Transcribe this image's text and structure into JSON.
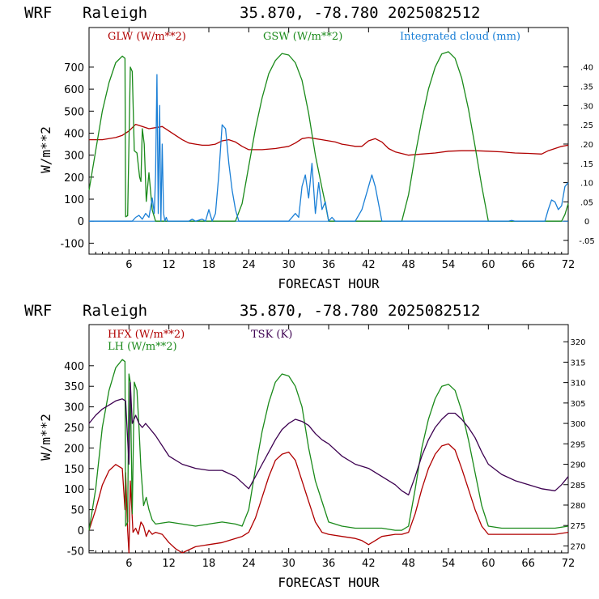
{
  "colors": {
    "red": "#b00000",
    "green": "#1a8a1a",
    "blue": "#1a7fd6",
    "purple": "#3c0050",
    "axis": "#000000"
  },
  "chart_data": [
    {
      "type": "line",
      "header": {
        "model": "WRF",
        "site": "Raleigh",
        "coords": "35.870, -78.780",
        "init": "2025082512"
      },
      "xlabel": "FORECAST HOUR",
      "ylabel": "W/m**2",
      "xlim": [
        0,
        72
      ],
      "ylim": [
        -150,
        880
      ],
      "y2lim": [
        -0.0856,
        0.5023
      ],
      "x_ticks": [
        6,
        12,
        18,
        24,
        30,
        36,
        42,
        48,
        54,
        60,
        66,
        72
      ],
      "y_ticks": [
        -100,
        0,
        100,
        200,
        300,
        400,
        500,
        600,
        700
      ],
      "y2_ticks": [
        ".40",
        ".35",
        ".30",
        ".25",
        ".20",
        ".15",
        ".10",
        ".05",
        "0",
        "-.05"
      ],
      "y2_tick_values": [
        0.4,
        0.35,
        0.3,
        0.25,
        0.2,
        0.15,
        0.1,
        0.05,
        0,
        -0.05
      ],
      "series": [
        {
          "name": "GLW (W/m**2)",
          "color": "red",
          "axis": "left",
          "x": [
            0,
            2,
            4,
            5,
            6,
            7,
            8,
            9,
            10,
            11,
            12,
            13,
            14,
            15,
            16,
            17,
            18,
            19,
            20,
            21,
            22,
            23,
            24,
            26,
            28,
            30,
            31,
            32,
            33,
            34,
            35,
            36,
            37,
            38,
            39,
            40,
            41,
            42,
            43,
            44,
            45,
            46,
            48,
            50,
            52,
            54,
            56,
            58,
            60,
            62,
            64,
            66,
            68,
            69,
            70,
            71,
            72
          ],
          "y": [
            370,
            370,
            380,
            390,
            410,
            440,
            430,
            420,
            425,
            430,
            410,
            390,
            370,
            355,
            350,
            345,
            345,
            350,
            365,
            370,
            360,
            340,
            325,
            325,
            330,
            340,
            355,
            375,
            380,
            375,
            370,
            365,
            360,
            350,
            345,
            340,
            340,
            365,
            375,
            360,
            330,
            315,
            300,
            305,
            310,
            318,
            320,
            320,
            318,
            315,
            310,
            308,
            305,
            320,
            330,
            340,
            345
          ]
        },
        {
          "name": "GSW (W/m**2)",
          "color": "green",
          "axis": "left",
          "x": [
            0,
            1,
            2,
            3,
            4,
            5,
            5.4,
            5.5,
            5.8,
            6.2,
            6.5,
            6.8,
            7.2,
            7.6,
            7.8,
            8,
            8.3,
            8.6,
            9,
            9.5,
            10,
            22,
            23,
            24,
            25,
            26,
            27,
            28,
            29,
            30,
            31,
            32,
            33,
            34,
            35,
            35.5,
            36,
            47,
            48,
            49,
            50,
            51,
            52,
            53,
            54,
            55,
            56,
            57,
            58,
            59,
            60,
            71,
            71.5,
            72
          ],
          "y": [
            140,
            320,
            500,
            630,
            720,
            750,
            740,
            20,
            25,
            700,
            680,
            320,
            310,
            200,
            180,
            420,
            350,
            90,
            220,
            50,
            0,
            0,
            80,
            250,
            420,
            560,
            670,
            730,
            762,
            755,
            720,
            640,
            490,
            300,
            150,
            80,
            0,
            0,
            120,
            300,
            460,
            600,
            700,
            760,
            770,
            740,
            650,
            510,
            340,
            160,
            0,
            0,
            30,
            80
          ]
        },
        {
          "name": "Integrated cloud (mm)",
          "color": "blue",
          "axis": "right",
          "x": [
            0,
            6.5,
            7,
            7.5,
            8,
            8.5,
            9,
            9.5,
            9.8,
            10,
            10.2,
            10.4,
            10.6,
            10.8,
            11,
            11.2,
            11.4,
            11.6,
            11.8,
            12,
            15,
            15.5,
            16,
            17,
            17.5,
            18,
            18.5,
            19,
            19.5,
            20,
            20.5,
            21,
            21.5,
            22,
            22.5,
            23,
            30,
            31,
            31.5,
            32,
            32.5,
            33,
            33.5,
            34,
            34.5,
            35,
            35.5,
            36,
            36.5,
            37,
            40,
            41,
            42,
            42.5,
            43,
            44,
            63,
            63.5,
            64,
            68.5,
            69,
            69.5,
            70,
            70.5,
            71,
            71.5,
            72
          ],
          "y": [
            0,
            0,
            0.01,
            0.015,
            0.005,
            0.02,
            0.01,
            0.06,
            0.02,
            0.12,
            0.38,
            0.02,
            0.3,
            0.0,
            0.2,
            0.02,
            0.0,
            0.01,
            0.0,
            0.0,
            0.0,
            0.005,
            0.0,
            0.005,
            0.0,
            0.03,
            0.0,
            0.02,
            0.12,
            0.25,
            0.24,
            0.15,
            0.08,
            0.03,
            0.0,
            0.0,
            0.0,
            0.02,
            0.01,
            0.09,
            0.12,
            0.06,
            0.15,
            0.02,
            0.1,
            0.03,
            0.05,
            0.0,
            0.01,
            0.0,
            0.0,
            0.03,
            0.09,
            0.12,
            0.09,
            0.0,
            0.0,
            0.002,
            0.0,
            0.0,
            0.03,
            0.055,
            0.05,
            0.03,
            0.04,
            0.09,
            0.1
          ]
        }
      ]
    },
    {
      "type": "line",
      "header": {
        "model": "WRF",
        "site": "Raleigh",
        "coords": "35.870, -78.780",
        "init": "2025082512"
      },
      "xlabel": "FORECAST HOUR",
      "ylabel": "W/m**2",
      "xlim": [
        0,
        72
      ],
      "ylim": [
        -55,
        500
      ],
      "y2lim": [
        268.3,
        324.2
      ],
      "x_ticks": [
        6,
        12,
        18,
        24,
        30,
        36,
        42,
        48,
        54,
        60,
        66,
        72
      ],
      "y_ticks": [
        -50,
        0,
        50,
        100,
        150,
        200,
        250,
        300,
        350,
        400
      ],
      "y2_ticks": [
        "320",
        "315",
        "310",
        "305",
        "300",
        "295",
        "290",
        "285",
        "280",
        "275",
        "270"
      ],
      "y2_tick_values": [
        320,
        315,
        310,
        305,
        300,
        295,
        290,
        285,
        280,
        275,
        270
      ],
      "series": [
        {
          "name": "HFX (W/m**2)",
          "color": "red",
          "axis": "left",
          "x": [
            0,
            1,
            2,
            3,
            4,
            5,
            5.4,
            5.5,
            5.8,
            6,
            6.2,
            6.6,
            7,
            7.4,
            7.8,
            8.2,
            8.6,
            9,
            9.5,
            10,
            11,
            12,
            13,
            14,
            16,
            18,
            20,
            22,
            23,
            24,
            25,
            26,
            27,
            28,
            29,
            30,
            31,
            32,
            33,
            34,
            35,
            36,
            38,
            40,
            41,
            42,
            43,
            44,
            46,
            47,
            48,
            49,
            50,
            51,
            52,
            53,
            54,
            55,
            56,
            57,
            58,
            59,
            60,
            64,
            68,
            70,
            72
          ],
          "y": [
            0,
            50,
            110,
            145,
            160,
            150,
            50,
            140,
            0,
            -55,
            120,
            -5,
            5,
            -10,
            20,
            10,
            -15,
            0,
            -10,
            -5,
            -10,
            -30,
            -45,
            -55,
            -40,
            -35,
            -30,
            -20,
            -15,
            -5,
            30,
            80,
            130,
            170,
            185,
            190,
            170,
            120,
            70,
            20,
            -5,
            -10,
            -15,
            -20,
            -25,
            -35,
            -25,
            -15,
            -10,
            -10,
            -5,
            40,
            100,
            150,
            185,
            205,
            210,
            195,
            150,
            100,
            50,
            10,
            -10,
            -10,
            -10,
            -10,
            -5
          ]
        },
        {
          "name": "LH (W/m**2)",
          "color": "green",
          "axis": "left",
          "x": [
            0,
            1,
            2,
            3,
            4,
            5,
            5.4,
            5.5,
            5.8,
            6,
            6.2,
            6.5,
            6.8,
            7.2,
            7.5,
            7.8,
            8.2,
            8.6,
            9,
            9.5,
            10,
            12,
            14,
            16,
            18,
            20,
            22,
            23,
            24,
            25,
            26,
            27,
            28,
            29,
            30,
            31,
            32,
            33,
            34,
            35,
            36,
            38,
            40,
            42,
            44,
            46,
            47,
            48,
            49,
            50,
            51,
            52,
            53,
            54,
            55,
            56,
            57,
            58,
            59,
            60,
            62,
            66,
            70,
            72
          ],
          "y": [
            0,
            100,
            250,
            340,
            395,
            415,
            410,
            10,
            20,
            380,
            360,
            40,
            360,
            340,
            250,
            150,
            60,
            80,
            50,
            25,
            15,
            20,
            15,
            10,
            15,
            20,
            15,
            10,
            50,
            150,
            240,
            310,
            360,
            380,
            375,
            350,
            300,
            200,
            120,
            70,
            20,
            10,
            5,
            5,
            5,
            0,
            0,
            10,
            100,
            200,
            270,
            320,
            350,
            355,
            340,
            290,
            220,
            140,
            60,
            10,
            5,
            5,
            5,
            10
          ]
        },
        {
          "name": "TSK (K)",
          "color": "purple",
          "axis": "right",
          "x": [
            0,
            1,
            2,
            3,
            4,
            5,
            5.5,
            6,
            6.2,
            6.5,
            7,
            7.5,
            8,
            8.5,
            9,
            10,
            12,
            14,
            16,
            18,
            20,
            22,
            23,
            24,
            25,
            26,
            27,
            28,
            29,
            30,
            31,
            32,
            33,
            34,
            35,
            36,
            38,
            40,
            42,
            44,
            46,
            47,
            48,
            49,
            50,
            51,
            52,
            53,
            54,
            55,
            56,
            57,
            58,
            59,
            60,
            62,
            64,
            66,
            68,
            70,
            71,
            72
          ],
          "y": [
            300,
            302,
            303.5,
            304.5,
            305.5,
            306,
            305.5,
            290,
            310,
            300,
            302,
            300,
            299,
            300,
            299,
            297,
            292,
            290,
            289,
            288.5,
            288.5,
            287,
            285.5,
            284,
            287,
            290,
            293,
            296,
            298.5,
            300,
            301,
            300.5,
            299.5,
            297.5,
            296,
            295,
            292,
            290,
            289,
            287,
            285,
            283.5,
            282.5,
            287,
            292,
            296,
            299,
            301,
            302.5,
            302.5,
            301,
            299,
            296.5,
            293,
            290,
            287.5,
            286,
            285,
            284,
            283.5,
            285,
            287
          ]
        }
      ]
    }
  ]
}
